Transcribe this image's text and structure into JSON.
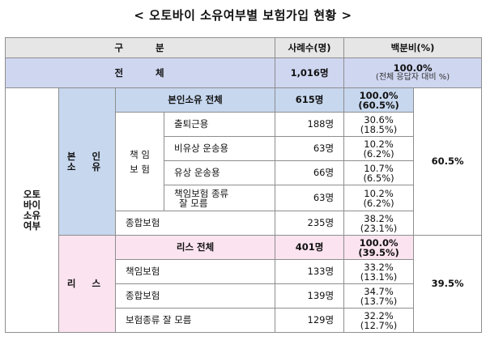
{
  "title": "< 오토바이 소유여부별 보험가입 현황 >",
  "headers": {
    "category": "구 분",
    "count": "사례수(명)",
    "percent": "백분비(%)"
  },
  "total": {
    "label": "전 체",
    "count": "1,016명",
    "percent": "100.0%",
    "note": "(전체 응답자 대비 %)"
  },
  "main_label": [
    "오토",
    "바이",
    "소유",
    "여부"
  ],
  "own": {
    "label": [
      "본 인",
      "소 유"
    ],
    "subtotal": {
      "label": "본인소유 전체",
      "count": "615명",
      "percent": "100.0%",
      "share": "(60.5%)"
    },
    "liability_group": [
      "책 임",
      "보 험"
    ],
    "rows": [
      {
        "label": "출퇴근용",
        "count": "188명",
        "percent": "30.6%",
        "share": "(18.5%)"
      },
      {
        "label": "비유상 운송용",
        "count": "63명",
        "percent": "10.2%",
        "share": "(6.2%)"
      },
      {
        "label": "유상 운송용",
        "count": "66명",
        "percent": "10.7%",
        "share": "(6.5%)"
      },
      {
        "label": "책임보험 종류 잘 모름",
        "label_line1": "책임보험 종류",
        "label_line2": "잘 모름",
        "count": "63명",
        "percent": "10.2%",
        "share": "(6.2%)"
      }
    ],
    "comprehensive": {
      "label": "종합보험",
      "count": "235명",
      "percent": "38.2%",
      "share": "(23.1%)"
    },
    "group_share": "60.5%"
  },
  "lease": {
    "label": "리 스",
    "subtotal": {
      "label": "리스 전체",
      "count": "401명",
      "percent": "100.0%",
      "share": "(39.5%)"
    },
    "rows": [
      {
        "label": "책임보험",
        "count": "133명",
        "percent": "33.2%",
        "share": "(13.1%)"
      },
      {
        "label": "종합보험",
        "count": "139명",
        "percent": "34.7%",
        "share": "(13.7%)"
      },
      {
        "label": "보험종류 잘 모름",
        "count": "129명",
        "percent": "32.2%",
        "share": "(12.7%)"
      }
    ],
    "group_share": "39.5%"
  }
}
